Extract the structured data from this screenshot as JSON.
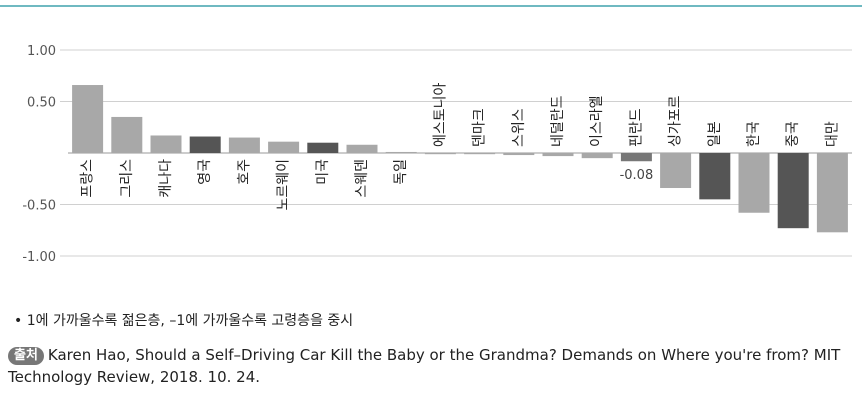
{
  "chart_data": {
    "type": "bar",
    "categories": [
      "프랑스",
      "그리스",
      "캐나다",
      "영국",
      "호주",
      "노르웨이",
      "미국",
      "스웨덴",
      "독일",
      "에스토니아",
      "덴마크",
      "스위스",
      "네덜란드",
      "이스라엘",
      "핀란드",
      "싱가포르",
      "일본",
      "한국",
      "중국",
      "대만"
    ],
    "values": [
      0.66,
      0.35,
      0.17,
      0.16,
      0.15,
      0.11,
      0.1,
      0.08,
      0.01,
      -0.01,
      -0.01,
      -0.02,
      -0.03,
      -0.05,
      -0.08,
      -0.34,
      -0.45,
      -0.58,
      -0.73,
      -0.77
    ],
    "colors": [
      "#a8a8a8",
      "#a8a8a8",
      "#a8a8a8",
      "#555555",
      "#a8a8a8",
      "#a8a8a8",
      "#555555",
      "#a8a8a8",
      "#a8a8a8",
      "#a8a8a8",
      "#a8a8a8",
      "#a8a8a8",
      "#a8a8a8",
      "#a8a8a8",
      "#777777",
      "#a8a8a8",
      "#555555",
      "#a8a8a8",
      "#555555",
      "#a8a8a8"
    ],
    "yticks": [
      1.0,
      0.5,
      -0.5,
      -1.0
    ],
    "ytick_labels": [
      "1.00",
      "0.50",
      "-0.50",
      "-1.00"
    ],
    "ylim": [
      -1.05,
      1.05
    ],
    "grid": true,
    "data_labels": [
      {
        "category": "핀란드",
        "text": "-0.08"
      }
    ],
    "title": "",
    "xlabel": "",
    "ylabel": ""
  },
  "note": "• 1에 가까울수록 젊은층, –1에 가까울수록 고령층을 중시",
  "source": {
    "badge": "출처",
    "text": "Karen Hao, Should a Self–Driving Car Kill the Baby or the Grandma? Demands on Where you're from? MIT Technology Review, 2018. 10. 24."
  }
}
